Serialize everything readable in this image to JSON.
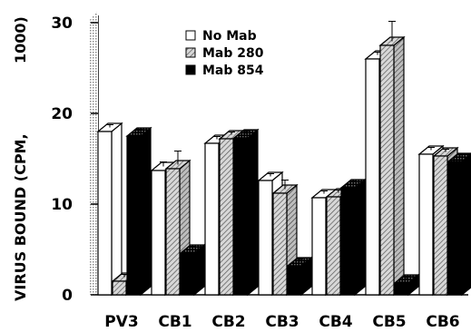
{
  "chart_data": {
    "type": "bar",
    "style": "3d-clustered",
    "categories": [
      "PV3",
      "CB1",
      "CB2",
      "CB3",
      "CB4",
      "CB5",
      "CB6"
    ],
    "series": [
      {
        "name": "No Mab",
        "values": [
          18.0,
          13.7,
          16.7,
          12.6,
          10.7,
          26.0,
          15.5
        ],
        "errors": [
          0.3,
          0.5,
          0.3,
          0.3,
          0.3,
          0.3,
          0.3
        ],
        "pattern": "white"
      },
      {
        "name": "Mab 280",
        "values": [
          1.5,
          13.9,
          17.2,
          11.2,
          10.8,
          27.5,
          15.3
        ],
        "errors": [
          0.3,
          1.5,
          0.3,
          1.0,
          0.3,
          2.2,
          0.3
        ],
        "pattern": "hatched"
      },
      {
        "name": "Mab 854",
        "values": [
          17.5,
          4.6,
          17.3,
          3.2,
          11.8,
          1.3,
          14.7
        ],
        "errors": [
          0.3,
          0.3,
          0.3,
          0.3,
          0.3,
          0.3,
          0.3
        ],
        "pattern": "black"
      }
    ],
    "ylabel": "VIRUS BOUND (CPM, 1000)",
    "ylabel_line1": "VIRUS BOUND (CPM,",
    "ylabel_line2": "1000)",
    "xlabel": "",
    "ylim": [
      0,
      30
    ],
    "yticks": [
      0,
      10,
      20,
      30
    ],
    "grid": false,
    "legend_position": "top-center"
  },
  "colors": {
    "white_face": "#ffffff",
    "hatched_face": "#d8d8d8",
    "hatched_line": "#555555",
    "black_face": "#000000",
    "stroke": "#000000",
    "pattern_dot": "#8a8a8a"
  },
  "icons": {
    "legend_white": "white-square-icon",
    "legend_hatched": "hatched-square-icon",
    "legend_black": "black-square-icon"
  }
}
